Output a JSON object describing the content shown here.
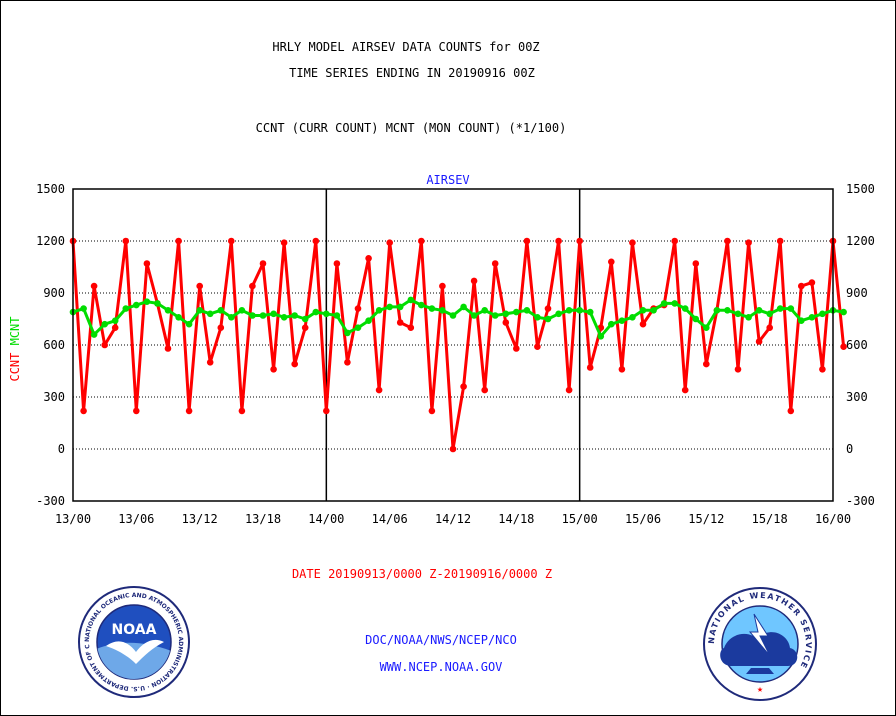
{
  "header": {
    "title_line1": "HRLY MODEL AIRSEV DATA COUNTS for 00Z",
    "title_line2": "TIME SERIES ENDING IN 20190916 00Z",
    "subtitle": "CCNT (CURR COUNT) MCNT (MON COUNT) (*1/100)"
  },
  "footer": {
    "date_range": "DATE 20190913/0000 Z-20190916/0000 Z",
    "org_line": "DOC/NOAA/NWS/NCEP/NCO",
    "url_line": "WWW.NCEP.NOAA.GOV"
  },
  "logos": {
    "noaa_text": "NOAA",
    "noaa_ring": "NATIONAL OCEANIC AND ATMOSPHERIC ADMINISTRATION · U.S. DEPARTMENT OF COMMERCE ·",
    "nws_ring": "NATIONAL WEATHER SERVICE"
  },
  "colors": {
    "ccnt": "#ff0000",
    "mcnt": "#00dd00",
    "label_blue": "#1a1aff",
    "grid": "#000000"
  },
  "chart_data": {
    "type": "line",
    "title": "AIRSEV",
    "ylabel_left": [
      "CCNT",
      "MCNT"
    ],
    "ylim": [
      -300,
      1500
    ],
    "yticks": [
      -300,
      0,
      300,
      600,
      900,
      1200,
      1500
    ],
    "xlim": [
      0,
      72
    ],
    "xtick_labels": [
      "13/00",
      "13/06",
      "13/12",
      "13/18",
      "14/00",
      "14/06",
      "14/12",
      "14/18",
      "15/00",
      "15/06",
      "15/12",
      "15/18",
      "16/00"
    ],
    "grid": "horizontal dotted",
    "day_dividers": [
      "14/00",
      "15/00"
    ],
    "x_unit": "hours since 13/00",
    "series": [
      {
        "name": "CCNT",
        "color": "#ff0000",
        "values": [
          1200,
          220,
          940,
          600,
          700,
          1200,
          220,
          1070,
          840,
          580,
          1200,
          220,
          940,
          500,
          700,
          1200,
          220,
          940,
          1070,
          460,
          1190,
          490,
          700,
          1200,
          220,
          1070,
          500,
          810,
          1100,
          340,
          1190,
          730,
          700,
          1200,
          220,
          940,
          0,
          360,
          970,
          340,
          1070,
          730,
          580,
          1200,
          590,
          810,
          1200,
          340,
          1200,
          470,
          700,
          1080,
          460,
          1190,
          720,
          810,
          830,
          1200,
          340,
          1070,
          490,
          800,
          1200,
          460,
          1190,
          620,
          700,
          1200,
          220,
          940,
          960,
          460,
          1200,
          590
        ]
      },
      {
        "name": "MCNT",
        "color": "#00dd00",
        "values": [
          790,
          810,
          660,
          720,
          740,
          810,
          830,
          850,
          840,
          800,
          760,
          720,
          800,
          780,
          800,
          760,
          800,
          770,
          770,
          780,
          760,
          770,
          750,
          790,
          780,
          770,
          670,
          700,
          740,
          800,
          820,
          820,
          860,
          830,
          810,
          800,
          770,
          820,
          770,
          800,
          770,
          780,
          790,
          800,
          760,
          750,
          780,
          800,
          800,
          790,
          650,
          720,
          740,
          760,
          800,
          800,
          840,
          840,
          810,
          750,
          700,
          800,
          800,
          780,
          760,
          800,
          780,
          810,
          810,
          740,
          760,
          780,
          800,
          790
        ]
      }
    ]
  }
}
